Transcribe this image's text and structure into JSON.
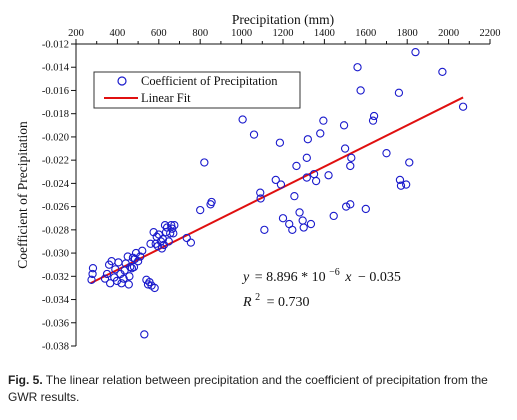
{
  "chart_data": {
    "type": "scatter",
    "xlabel": "Precipitation (mm)",
    "ylabel": "Coefficient of Precipitation",
    "xlim": [
      200,
      2200
    ],
    "ylim": [
      -0.038,
      -0.012
    ],
    "x_ticks": [
      "200",
      "400",
      "600",
      "800",
      "1000",
      "1200",
      "1400",
      "1600",
      "1800",
      "2000",
      "2200"
    ],
    "y_ticks": [
      "-0.012",
      "-0.014",
      "-0.016",
      "-0.018",
      "-0.020",
      "-0.022",
      "-0.024",
      "-0.026",
      "-0.028",
      "-0.030",
      "-0.032",
      "-0.034",
      "-0.036",
      "-0.038"
    ],
    "x_axis_position": "top",
    "grid": false,
    "legend": {
      "position": "top-left",
      "entries": [
        "Coefficient of Precipitation",
        "Linear Fit"
      ]
    },
    "colors": {
      "points": "#1a1acc",
      "fit": "#e01010"
    },
    "series": [
      {
        "name": "Coefficient of Precipitation",
        "points": [
          [
            275,
            -0.0323
          ],
          [
            280,
            -0.0318
          ],
          [
            282,
            -0.0313
          ],
          [
            340,
            -0.0322
          ],
          [
            350,
            -0.0318
          ],
          [
            360,
            -0.031
          ],
          [
            365,
            -0.0326
          ],
          [
            372,
            -0.0307
          ],
          [
            385,
            -0.0321
          ],
          [
            390,
            -0.0314
          ],
          [
            398,
            -0.0324
          ],
          [
            405,
            -0.0308
          ],
          [
            415,
            -0.0318
          ],
          [
            420,
            -0.0326
          ],
          [
            430,
            -0.0322
          ],
          [
            435,
            -0.0315
          ],
          [
            440,
            -0.0309
          ],
          [
            450,
            -0.0303
          ],
          [
            455,
            -0.0327
          ],
          [
            458,
            -0.032
          ],
          [
            462,
            -0.0312
          ],
          [
            470,
            -0.0313
          ],
          [
            475,
            -0.0304
          ],
          [
            480,
            -0.0312
          ],
          [
            485,
            -0.0305
          ],
          [
            490,
            -0.03
          ],
          [
            500,
            -0.0307
          ],
          [
            510,
            -0.0303
          ],
          [
            520,
            -0.0298
          ],
          [
            530,
            -0.037
          ],
          [
            540,
            -0.0323
          ],
          [
            548,
            -0.0327
          ],
          [
            555,
            -0.0325
          ],
          [
            560,
            -0.0292
          ],
          [
            565,
            -0.0328
          ],
          [
            575,
            -0.0282
          ],
          [
            580,
            -0.033
          ],
          [
            585,
            -0.0292
          ],
          [
            590,
            -0.0286
          ],
          [
            595,
            -0.0294
          ],
          [
            600,
            -0.0284
          ],
          [
            610,
            -0.029
          ],
          [
            615,
            -0.0296
          ],
          [
            620,
            -0.0288
          ],
          [
            625,
            -0.0293
          ],
          [
            630,
            -0.0276
          ],
          [
            635,
            -0.0282
          ],
          [
            640,
            -0.0278
          ],
          [
            648,
            -0.029
          ],
          [
            655,
            -0.0283
          ],
          [
            660,
            -0.0276
          ],
          [
            665,
            -0.0279
          ],
          [
            670,
            -0.0283
          ],
          [
            675,
            -0.0276
          ],
          [
            735,
            -0.0287
          ],
          [
            755,
            -0.0291
          ],
          [
            800,
            -0.0263
          ],
          [
            820,
            -0.0222
          ],
          [
            850,
            -0.0258
          ],
          [
            855,
            -0.0256
          ],
          [
            1005,
            -0.0185
          ],
          [
            1060,
            -0.0198
          ],
          [
            1090,
            -0.0248
          ],
          [
            1092,
            -0.0253
          ],
          [
            1110,
            -0.028
          ],
          [
            1165,
            -0.0237
          ],
          [
            1185,
            -0.0205
          ],
          [
            1190,
            -0.0241
          ],
          [
            1200,
            -0.027
          ],
          [
            1230,
            -0.0275
          ],
          [
            1245,
            -0.028
          ],
          [
            1255,
            -0.0251
          ],
          [
            1265,
            -0.0225
          ],
          [
            1280,
            -0.0265
          ],
          [
            1295,
            -0.0272
          ],
          [
            1300,
            -0.0278
          ],
          [
            1315,
            -0.0218
          ],
          [
            1315,
            -0.0235
          ],
          [
            1320,
            -0.0202
          ],
          [
            1335,
            -0.0275
          ],
          [
            1350,
            -0.0232
          ],
          [
            1360,
            -0.0238
          ],
          [
            1380,
            -0.0197
          ],
          [
            1395,
            -0.0186
          ],
          [
            1420,
            -0.0233
          ],
          [
            1445,
            -0.0268
          ],
          [
            1495,
            -0.019
          ],
          [
            1500,
            -0.021
          ],
          [
            1505,
            -0.026
          ],
          [
            1525,
            -0.0258
          ],
          [
            1525,
            -0.0225
          ],
          [
            1530,
            -0.0218
          ],
          [
            1560,
            -0.014
          ],
          [
            1575,
            -0.016
          ],
          [
            1600,
            -0.0262
          ],
          [
            1635,
            -0.0186
          ],
          [
            1640,
            -0.0182
          ],
          [
            1700,
            -0.0214
          ],
          [
            1760,
            -0.0162
          ],
          [
            1765,
            -0.0237
          ],
          [
            1770,
            -0.0242
          ],
          [
            1795,
            -0.0241
          ],
          [
            1810,
            -0.0222
          ],
          [
            1840,
            -0.0127
          ],
          [
            1970,
            -0.0144
          ],
          [
            2070,
            -0.0174
          ]
        ]
      },
      {
        "name": "Linear Fit",
        "x": [
          270,
          2070
        ],
        "y": [
          -0.0326,
          -0.0166
        ]
      }
    ],
    "annotations": {
      "equation_y": "y",
      "equation_eq": "= 8.896 * 10",
      "equation_exp": "−6",
      "equation_x": "x",
      "equation_tail": "− 0.035",
      "r2_label": "R",
      "r2_exp": "2",
      "r2_value": "= 0.730"
    }
  },
  "caption": {
    "label": "Fig. 5.",
    "text": "The linear relation between precipitation and the coefficient of precipitation from the GWR results."
  }
}
